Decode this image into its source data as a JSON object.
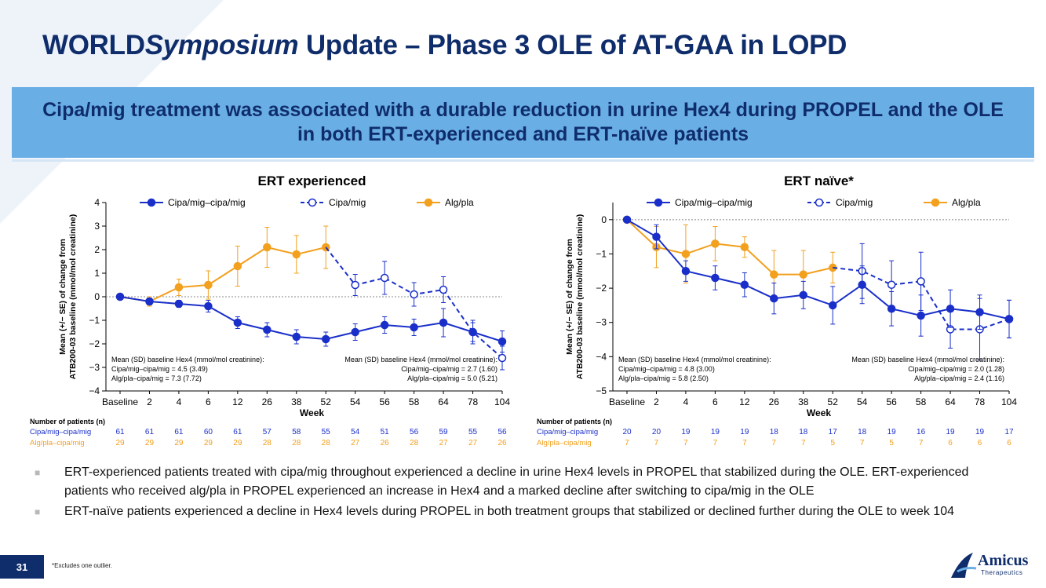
{
  "slide": {
    "title_part1": "WORLD",
    "title_italic": "Symposium",
    "title_part2": " Update – Phase 3 OLE of AT-GAA in LOPD",
    "banner": "Cipa/mig treatment was associated with a durable reduction in urine Hex4 during PROPEL and the OLE in both ERT-experienced and ERT-naïve patients",
    "bullets": [
      "ERT-experienced patients treated with cipa/mig throughout experienced a decline in urine Hex4 levels in PROPEL that stabilized during the OLE. ERT-experienced patients who received alg/pla in PROPEL experienced an increase in Hex4 and a marked decline after switching to cipa/mig in the OLE",
      "ERT-naïve patients experienced a decline in Hex4 levels during PROPEL in both treatment groups that stabilized or declined further during the OLE to week 104"
    ],
    "page_number": "31",
    "footnote": "*Excludes one outlier.",
    "logo_text": "Amicus",
    "logo_sub": "Therapeutics",
    "colors": {
      "navy": "#0f2d6b",
      "banner": "#6aaee6",
      "blue": "#1a2fc9",
      "orange": "#f2a01e"
    }
  },
  "chart_data": [
    {
      "type": "line",
      "title": "ERT experienced",
      "xlabel": "Week",
      "ylabel_line1": "Mean (+/− SE) of change from",
      "ylabel_line2": "ATB200-03 baseline (mmol/mol creatinine)",
      "categories": [
        "Baseline",
        "2",
        "4",
        "6",
        "12",
        "26",
        "38",
        "52",
        "54",
        "56",
        "58",
        "64",
        "78",
        "104"
      ],
      "ylim": [
        -4,
        4
      ],
      "yticks": [
        4,
        3,
        2,
        1,
        0,
        -1,
        -2,
        -3,
        -4
      ],
      "ytick_labels": [
        "4",
        "3",
        "2",
        "1",
        "0",
        "−1",
        "−2",
        "−3",
        "−4"
      ],
      "legend": [
        "Cipa/mig–cipa/mig",
        "Cipa/mig",
        "Alg/pla"
      ],
      "series": [
        {
          "name": "Cipa/mig–cipa/mig",
          "style": "solid-filled",
          "color": "#1a2fc9",
          "x": [
            0,
            1,
            2,
            3,
            4,
            5,
            6,
            7,
            8,
            9,
            10,
            11,
            12,
            13
          ],
          "values": [
            0,
            -0.2,
            -0.3,
            -0.4,
            -1.1,
            -1.4,
            -1.7,
            -1.8,
            -1.5,
            -1.2,
            -1.3,
            -1.1,
            -1.5,
            -1.9
          ],
          "se": [
            0,
            0.15,
            0.15,
            0.25,
            0.25,
            0.3,
            0.3,
            0.3,
            0.35,
            0.35,
            0.35,
            0.6,
            0.5,
            0.45
          ]
        },
        {
          "name": "Cipa/mig",
          "style": "dashed-open",
          "color": "#1a2fc9",
          "x": [
            7,
            8,
            9,
            10,
            11,
            12,
            13
          ],
          "values": [
            2.1,
            0.5,
            0.8,
            0.1,
            0.3,
            -1.5,
            -2.6
          ],
          "se": [
            0,
            0.45,
            0.7,
            0.5,
            0.55,
            0.4,
            0.5
          ]
        },
        {
          "name": "Alg/pla",
          "style": "solid-filled",
          "color": "#f2a01e",
          "x": [
            0,
            1,
            2,
            3,
            4,
            5,
            6,
            7
          ],
          "values": [
            0,
            -0.2,
            0.4,
            0.5,
            1.3,
            2.1,
            1.8,
            2.1
          ],
          "se": [
            0,
            0.2,
            0.35,
            0.6,
            0.85,
            0.85,
            0.8,
            0.9
          ]
        }
      ],
      "annotation_left": [
        "Mean (SD) baseline Hex4 (mmol/mol creatinine):",
        "Cipa/mig–cipa/mig = 4.5 (3.49)",
        "Alg/pla–cipa/mig = 7.3 (7.72)"
      ],
      "annotation_right": [
        "Mean (SD) baseline Hex4 (mmol/mol creatinine):",
        "Cipa/mig–cipa/mig = 2.7 (1.60)",
        "Alg/pla–cipa/mig = 5.0 (5.21)"
      ],
      "n_table": {
        "header": "Number of patients (n)",
        "rows": [
          {
            "label": "Cipa/mig–cipa/mig",
            "color": "#1a2fc9",
            "values": [
              "61",
              "61",
              "61",
              "60",
              "61",
              "57",
              "58",
              "55",
              "54",
              "51",
              "56",
              "59",
              "55",
              "56"
            ]
          },
          {
            "label": "Alg/pla–cipa/mig",
            "color": "#f2a01e",
            "values": [
              "29",
              "29",
              "29",
              "29",
              "29",
              "28",
              "28",
              "28",
              "27",
              "26",
              "28",
              "27",
              "27",
              "26"
            ]
          }
        ]
      }
    },
    {
      "type": "line",
      "title": "ERT naïve*",
      "xlabel": "Week",
      "ylabel_line1": "Mean (+/− SE) of change from",
      "ylabel_line2": "ATB200-03 baseline (mmol/mol creatinine)",
      "categories": [
        "Baseline",
        "2",
        "4",
        "6",
        "12",
        "26",
        "38",
        "52",
        "54",
        "56",
        "58",
        "64",
        "78",
        "104"
      ],
      "ylim": [
        -5,
        0.5
      ],
      "yticks": [
        0,
        -1,
        -2,
        -3,
        -4,
        -5
      ],
      "ytick_labels": [
        "0",
        "−1",
        "−2",
        "−3",
        "−4",
        "−5"
      ],
      "legend": [
        "Cipa/mig–cipa/mig",
        "Cipa/mig",
        "Alg/pla"
      ],
      "series": [
        {
          "name": "Cipa/mig–cipa/mig",
          "style": "solid-filled",
          "color": "#1a2fc9",
          "x": [
            0,
            1,
            2,
            3,
            4,
            5,
            6,
            7,
            8,
            9,
            10,
            11,
            12,
            13
          ],
          "values": [
            0,
            -0.5,
            -1.5,
            -1.7,
            -1.9,
            -2.3,
            -2.2,
            -2.5,
            -1.9,
            -2.6,
            -2.8,
            -2.6,
            -2.7,
            -2.9
          ],
          "se": [
            0,
            0.35,
            0.3,
            0.35,
            0.35,
            0.45,
            0.4,
            0.55,
            0.55,
            0.5,
            0.6,
            0.55,
            0.5,
            0.55
          ]
        },
        {
          "name": "Cipa/mig",
          "style": "dashed-open",
          "color": "#1a2fc9",
          "x": [
            7,
            8,
            9,
            10,
            11,
            12,
            13
          ],
          "values": [
            -1.4,
            -1.5,
            -1.9,
            -1.8,
            -3.2,
            -3.2,
            -2.9
          ],
          "se": [
            0,
            0.8,
            0.7,
            0.85,
            0.55,
            0.9,
            0.55
          ]
        },
        {
          "name": "Alg/pla",
          "style": "solid-filled",
          "color": "#f2a01e",
          "x": [
            0,
            1,
            2,
            3,
            4,
            5,
            6,
            7
          ],
          "values": [
            0,
            -0.8,
            -1.0,
            -0.7,
            -0.8,
            -1.6,
            -1.6,
            -1.4
          ],
          "se": [
            0,
            0.6,
            0.85,
            0.5,
            0.3,
            0.7,
            0.7,
            0.45
          ]
        }
      ],
      "annotation_left": [
        "Mean (SD) baseline Hex4 (mmol/mol creatinine):",
        "Cipa/mig–cipa/mig = 4.8 (3.00)",
        "Alg/pla–cipa/mig = 5.8 (2.50)"
      ],
      "annotation_right": [
        "Mean (SD) baseline Hex4 (mmol/mol creatinine):",
        "Cipa/mig–cipa/mig = 2.0 (1.28)",
        "Alg/pla–cipa/mig = 2.4 (1.16)"
      ],
      "n_table": {
        "header": "Number of patients (n)",
        "rows": [
          {
            "label": "Cipa/mig–cipa/mig",
            "color": "#1a2fc9",
            "values": [
              "20",
              "20",
              "19",
              "19",
              "19",
              "18",
              "18",
              "17",
              "18",
              "19",
              "16",
              "19",
              "19",
              "17"
            ]
          },
          {
            "label": "Alg/pla–cipa/mig",
            "color": "#f2a01e",
            "values": [
              "7",
              "7",
              "7",
              "7",
              "7",
              "7",
              "7",
              "5",
              "7",
              "5",
              "7",
              "6",
              "6",
              "6"
            ]
          }
        ]
      }
    }
  ]
}
